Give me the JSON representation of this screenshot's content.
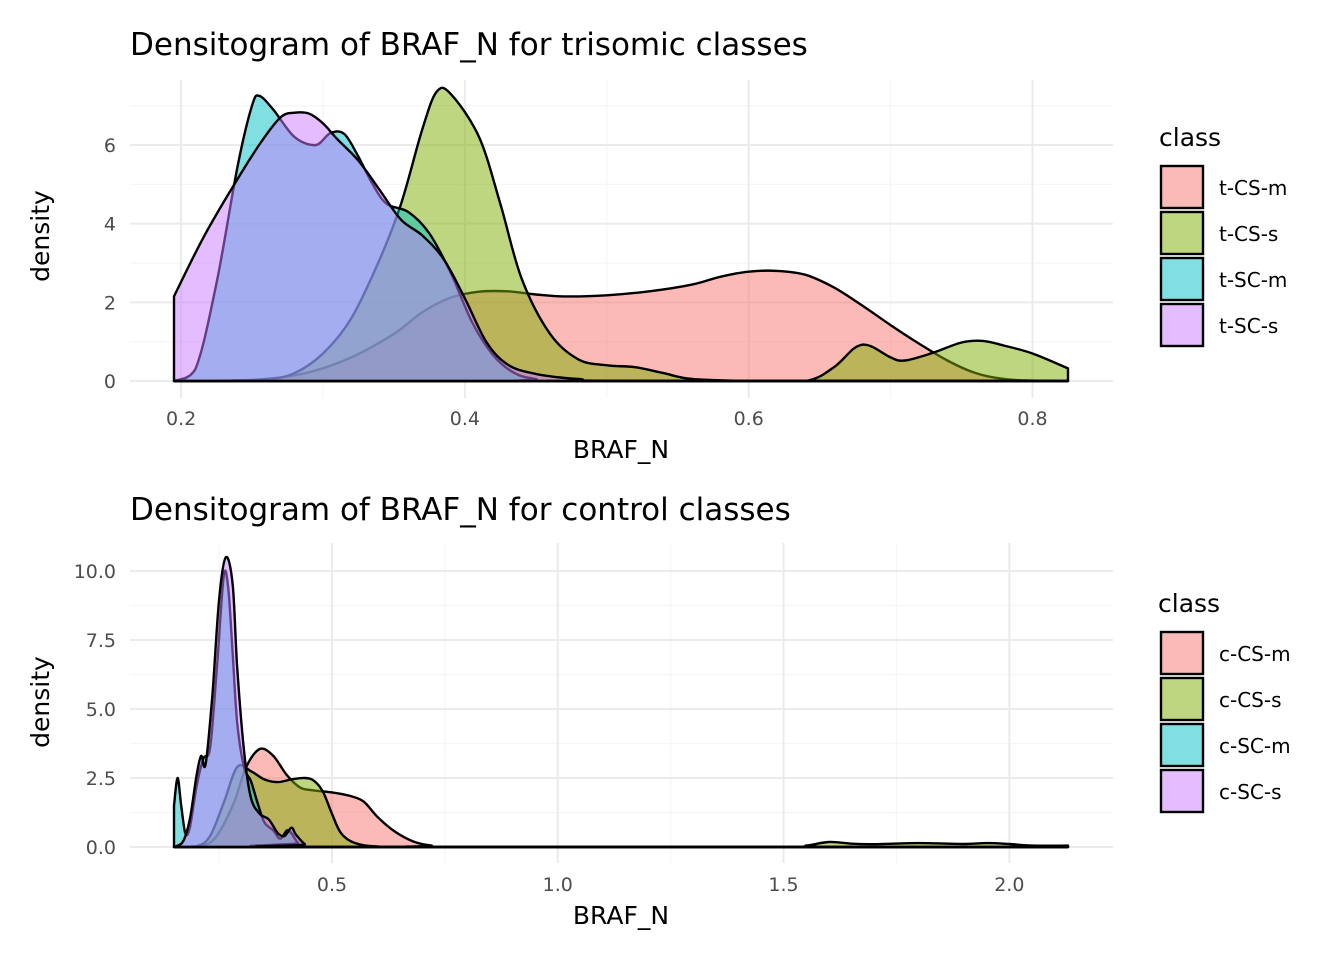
{
  "chart_data": [
    {
      "type": "area",
      "title": "Densitogram of BRAF_N for trisomic classes",
      "xlabel": "BRAF_N",
      "ylabel": "density",
      "xlim": [
        0.195,
        0.825
      ],
      "ylim": [
        0,
        7.45
      ],
      "x_ticks": [
        0.2,
        0.4,
        0.6,
        0.8
      ],
      "x_tick_labels": [
        "0.2",
        "0.4",
        "0.6",
        "0.8"
      ],
      "x_minor_ticks": [
        0.3,
        0.5,
        0.7
      ],
      "y_ticks": [
        0,
        2,
        4,
        6
      ],
      "y_tick_labels": [
        "0",
        "2",
        "4",
        "6"
      ],
      "y_minor_ticks": [
        1,
        3,
        5,
        7
      ],
      "grid": true,
      "legend_title": "class",
      "legend_position": "right",
      "series": [
        {
          "name": "t-CS-m",
          "color": "#F8766D",
          "points": [
            [
              0.195,
              0.0
            ],
            [
              0.23,
              0.01
            ],
            [
              0.26,
              0.05
            ],
            [
              0.29,
              0.22
            ],
            [
              0.32,
              0.6
            ],
            [
              0.35,
              1.2
            ],
            [
              0.37,
              1.75
            ],
            [
              0.39,
              2.12
            ],
            [
              0.41,
              2.27
            ],
            [
              0.43,
              2.28
            ],
            [
              0.45,
              2.2
            ],
            [
              0.47,
              2.15
            ],
            [
              0.5,
              2.18
            ],
            [
              0.53,
              2.28
            ],
            [
              0.56,
              2.45
            ],
            [
              0.58,
              2.65
            ],
            [
              0.6,
              2.78
            ],
            [
              0.62,
              2.8
            ],
            [
              0.64,
              2.7
            ],
            [
              0.66,
              2.38
            ],
            [
              0.68,
              1.92
            ],
            [
              0.7,
              1.42
            ],
            [
              0.72,
              0.95
            ],
            [
              0.74,
              0.52
            ],
            [
              0.76,
              0.2
            ],
            [
              0.78,
              0.05
            ],
            [
              0.8,
              0.01
            ],
            [
              0.825,
              0.0
            ]
          ]
        },
        {
          "name": "t-CS-s",
          "color": "#7CAE00",
          "points": [
            [
              0.195,
              0.0
            ],
            [
              0.24,
              0.0
            ],
            [
              0.26,
              0.03
            ],
            [
              0.28,
              0.2
            ],
            [
              0.3,
              0.7
            ],
            [
              0.32,
              1.6
            ],
            [
              0.34,
              3.1
            ],
            [
              0.355,
              4.5
            ],
            [
              0.37,
              6.4
            ],
            [
              0.38,
              7.35
            ],
            [
              0.39,
              7.3
            ],
            [
              0.41,
              6.2
            ],
            [
              0.425,
              4.5
            ],
            [
              0.44,
              2.6
            ],
            [
              0.46,
              1.2
            ],
            [
              0.48,
              0.55
            ],
            [
              0.5,
              0.4
            ],
            [
              0.52,
              0.35
            ],
            [
              0.54,
              0.2
            ],
            [
              0.56,
              0.05
            ],
            [
              0.6,
              0.0
            ],
            [
              0.64,
              0.0
            ],
            [
              0.66,
              0.35
            ],
            [
              0.675,
              0.85
            ],
            [
              0.685,
              0.9
            ],
            [
              0.7,
              0.6
            ],
            [
              0.71,
              0.52
            ],
            [
              0.73,
              0.72
            ],
            [
              0.75,
              0.98
            ],
            [
              0.765,
              1.02
            ],
            [
              0.78,
              0.9
            ],
            [
              0.8,
              0.7
            ],
            [
              0.825,
              0.32
            ]
          ]
        },
        {
          "name": "t-SC-m",
          "color": "#00BFC4",
          "points": [
            [
              0.195,
              0.0
            ],
            [
              0.21,
              0.3
            ],
            [
              0.225,
              2.5
            ],
            [
              0.24,
              5.5
            ],
            [
              0.25,
              7.0
            ],
            [
              0.255,
              7.25
            ],
            [
              0.265,
              6.9
            ],
            [
              0.28,
              6.2
            ],
            [
              0.295,
              6.0
            ],
            [
              0.305,
              6.3
            ],
            [
              0.315,
              6.28
            ],
            [
              0.325,
              5.7
            ],
            [
              0.335,
              5.0
            ],
            [
              0.345,
              4.5
            ],
            [
              0.36,
              4.3
            ],
            [
              0.375,
              3.75
            ],
            [
              0.39,
              2.75
            ],
            [
              0.405,
              1.5
            ],
            [
              0.42,
              0.65
            ],
            [
              0.435,
              0.2
            ],
            [
              0.45,
              0.05
            ],
            [
              0.47,
              0.0
            ],
            [
              0.825,
              0.0
            ]
          ]
        },
        {
          "name": "t-SC-s",
          "color": "#C77CFF",
          "points": [
            [
              0.195,
              2.15
            ],
            [
              0.215,
              3.6
            ],
            [
              0.235,
              4.85
            ],
            [
              0.255,
              6.0
            ],
            [
              0.27,
              6.7
            ],
            [
              0.28,
              6.82
            ],
            [
              0.29,
              6.8
            ],
            [
              0.3,
              6.55
            ],
            [
              0.31,
              6.15
            ],
            [
              0.325,
              5.6
            ],
            [
              0.34,
              4.85
            ],
            [
              0.355,
              4.1
            ],
            [
              0.37,
              3.7
            ],
            [
              0.385,
              3.1
            ],
            [
              0.4,
              2.1
            ],
            [
              0.415,
              1.0
            ],
            [
              0.43,
              0.42
            ],
            [
              0.45,
              0.18
            ],
            [
              0.48,
              0.05
            ],
            [
              0.52,
              0.0
            ],
            [
              0.825,
              0.0
            ]
          ]
        }
      ]
    },
    {
      "type": "area",
      "title": "Densitogram of BRAF_N for control classes",
      "xlabel": "BRAF_N",
      "ylabel": "density",
      "xlim": [
        0.15,
        2.13
      ],
      "ylim": [
        0,
        10.55
      ],
      "x_ticks": [
        0.5,
        1.0,
        1.5,
        2.0
      ],
      "x_tick_labels": [
        "0.5",
        "1.0",
        "1.5",
        "2.0"
      ],
      "x_minor_ticks": [
        0.25,
        0.75,
        1.25,
        1.75
      ],
      "y_ticks": [
        0,
        2.5,
        5,
        7.5,
        10
      ],
      "y_tick_labels": [
        "0.0",
        "2.5",
        "5.0",
        "7.5",
        "10.0"
      ],
      "y_minor_ticks": [
        1.25,
        3.75,
        6.25,
        8.75
      ],
      "grid": true,
      "legend_title": "class",
      "legend_position": "right",
      "series": [
        {
          "name": "c-CS-m",
          "color": "#F8766D",
          "points": [
            [
              0.15,
              0.0
            ],
            [
              0.2,
              0.02
            ],
            [
              0.24,
              0.3
            ],
            [
              0.28,
              1.5
            ],
            [
              0.31,
              2.9
            ],
            [
              0.34,
              3.55
            ],
            [
              0.37,
              3.3
            ],
            [
              0.4,
              2.6
            ],
            [
              0.43,
              2.15
            ],
            [
              0.46,
              2.05
            ],
            [
              0.5,
              1.98
            ],
            [
              0.54,
              1.85
            ],
            [
              0.57,
              1.65
            ],
            [
              0.6,
              1.1
            ],
            [
              0.64,
              0.55
            ],
            [
              0.68,
              0.2
            ],
            [
              0.72,
              0.05
            ],
            [
              0.78,
              0.0
            ],
            [
              2.13,
              0.0
            ]
          ]
        },
        {
          "name": "c-CS-s",
          "color": "#7CAE00",
          "points": [
            [
              0.15,
              0.0
            ],
            [
              0.2,
              0.03
            ],
            [
              0.23,
              0.4
            ],
            [
              0.26,
              1.6
            ],
            [
              0.29,
              2.9
            ],
            [
              0.32,
              2.75
            ],
            [
              0.35,
              2.45
            ],
            [
              0.38,
              2.35
            ],
            [
              0.41,
              2.45
            ],
            [
              0.44,
              2.5
            ],
            [
              0.46,
              2.4
            ],
            [
              0.48,
              2.0
            ],
            [
              0.5,
              1.2
            ],
            [
              0.52,
              0.5
            ],
            [
              0.55,
              0.15
            ],
            [
              0.6,
              0.02
            ],
            [
              0.7,
              0.0
            ],
            [
              1.5,
              0.0
            ],
            [
              1.55,
              0.05
            ],
            [
              1.6,
              0.18
            ],
            [
              1.65,
              0.12
            ],
            [
              1.7,
              0.1
            ],
            [
              1.8,
              0.14
            ],
            [
              1.9,
              0.11
            ],
            [
              1.95,
              0.14
            ],
            [
              2.0,
              0.11
            ],
            [
              2.05,
              0.05
            ],
            [
              2.13,
              0.05
            ]
          ]
        },
        {
          "name": "c-SC-m",
          "color": "#00BFC4",
          "points": [
            [
              0.15,
              1.5
            ],
            [
              0.158,
              2.5
            ],
            [
              0.166,
              1.5
            ],
            [
              0.175,
              0.5
            ],
            [
              0.185,
              0.7
            ],
            [
              0.2,
              2.2
            ],
            [
              0.215,
              3.2
            ],
            [
              0.23,
              3.6
            ],
            [
              0.245,
              6.5
            ],
            [
              0.26,
              9.8
            ],
            [
              0.27,
              9.4
            ],
            [
              0.28,
              7.0
            ],
            [
              0.29,
              4.5
            ],
            [
              0.305,
              2.9
            ],
            [
              0.32,
              2.4
            ],
            [
              0.335,
              1.6
            ],
            [
              0.35,
              0.9
            ],
            [
              0.37,
              0.6
            ],
            [
              0.385,
              0.3
            ],
            [
              0.4,
              0.6
            ],
            [
              0.41,
              0.5
            ],
            [
              0.425,
              0.15
            ],
            [
              0.45,
              0.0
            ],
            [
              2.13,
              0.0
            ]
          ]
        },
        {
          "name": "c-SC-s",
          "color": "#C77CFF",
          "points": [
            [
              0.15,
              0.0
            ],
            [
              0.17,
              0.2
            ],
            [
              0.185,
              1.0
            ],
            [
              0.2,
              2.6
            ],
            [
              0.21,
              3.3
            ],
            [
              0.22,
              3.0
            ],
            [
              0.235,
              5.5
            ],
            [
              0.25,
              9.0
            ],
            [
              0.265,
              10.5
            ],
            [
              0.28,
              9.5
            ],
            [
              0.29,
              6.5
            ],
            [
              0.305,
              3.5
            ],
            [
              0.32,
              1.8
            ],
            [
              0.34,
              1.2
            ],
            [
              0.36,
              1.0
            ],
            [
              0.38,
              0.5
            ],
            [
              0.395,
              0.4
            ],
            [
              0.41,
              0.7
            ],
            [
              0.42,
              0.45
            ],
            [
              0.44,
              0.1
            ],
            [
              0.46,
              0.0
            ],
            [
              2.13,
              0.0
            ]
          ]
        }
      ]
    }
  ]
}
